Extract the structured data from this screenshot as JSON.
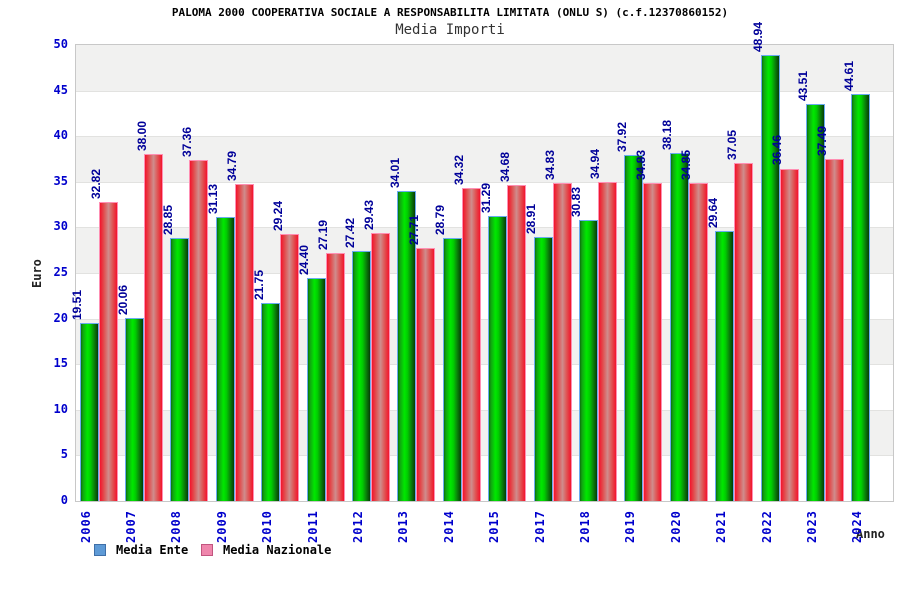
{
  "header": {
    "title": "PALOMA 2000 COOPERATIVA SOCIALE A RESPONSABILITA LIMITATA (ONLU S) (c.f.12370860152)",
    "subtitle": "Media Importi"
  },
  "legend": {
    "items": [
      {
        "label": "Media Ente",
        "swatch_color": "#5e9ad6",
        "swatch_border": "#3f6fa8"
      },
      {
        "label": "Media Nazionale",
        "swatch_color": "#ef86ac",
        "swatch_border": "#c2557f"
      }
    ],
    "position": "bottom-left"
  },
  "chart_data": {
    "type": "bar",
    "title": "PALOMA 2000 COOPERATIVA SOCIALE A RESPONSABILITA LIMITATA (ONLU S) (c.f.12370860152)",
    "subtitle": "Media Importi",
    "xlabel": "Anno",
    "ylabel": "Euro",
    "ylim": [
      0,
      50
    ],
    "ytick_step": 5,
    "y_tick_labels": [
      "0",
      "5",
      "10",
      "15",
      "20",
      "25",
      "30",
      "35",
      "40",
      "45",
      "50"
    ],
    "grid": "horizontal-alternating-bands",
    "legend_position": "bottom-left",
    "value_label_format": "0.00",
    "categories": [
      "2006",
      "2007",
      "2008",
      "2009",
      "2010",
      "2011",
      "2012",
      "2013",
      "2014",
      "2015",
      "2017",
      "2018",
      "2019",
      "2020",
      "2021",
      "2022",
      "2023",
      "2024"
    ],
    "series": [
      {
        "name": "Media Ente",
        "values": [
          19.51,
          20.06,
          28.85,
          31.13,
          21.75,
          24.4,
          27.42,
          34.01,
          28.79,
          31.29,
          28.91,
          30.83,
          37.92,
          38.18,
          29.64,
          48.94,
          43.51,
          44.61
        ]
      },
      {
        "name": "Media Nazionale",
        "values": [
          32.82,
          38.0,
          37.36,
          34.79,
          29.24,
          27.19,
          29.43,
          27.71,
          34.32,
          34.68,
          34.83,
          34.94,
          34.83,
          34.85,
          37.05,
          36.46,
          37.49,
          null
        ]
      }
    ]
  },
  "colors": {
    "value_label": "#000099",
    "axis_tick": "#0000cc",
    "band_gray": "#f1f1f0",
    "gridline": "#e2e2e0",
    "plot_border": "#c8c8c8",
    "bar_green_edge": "#063c06",
    "bar_green_bright": "#00e800",
    "bar_green_outline": "#6aabf0",
    "bar_red_edge": "#f2142c",
    "bar_red_center": "#cf8d8d",
    "bar_red_outline": "#ff8fb3"
  }
}
